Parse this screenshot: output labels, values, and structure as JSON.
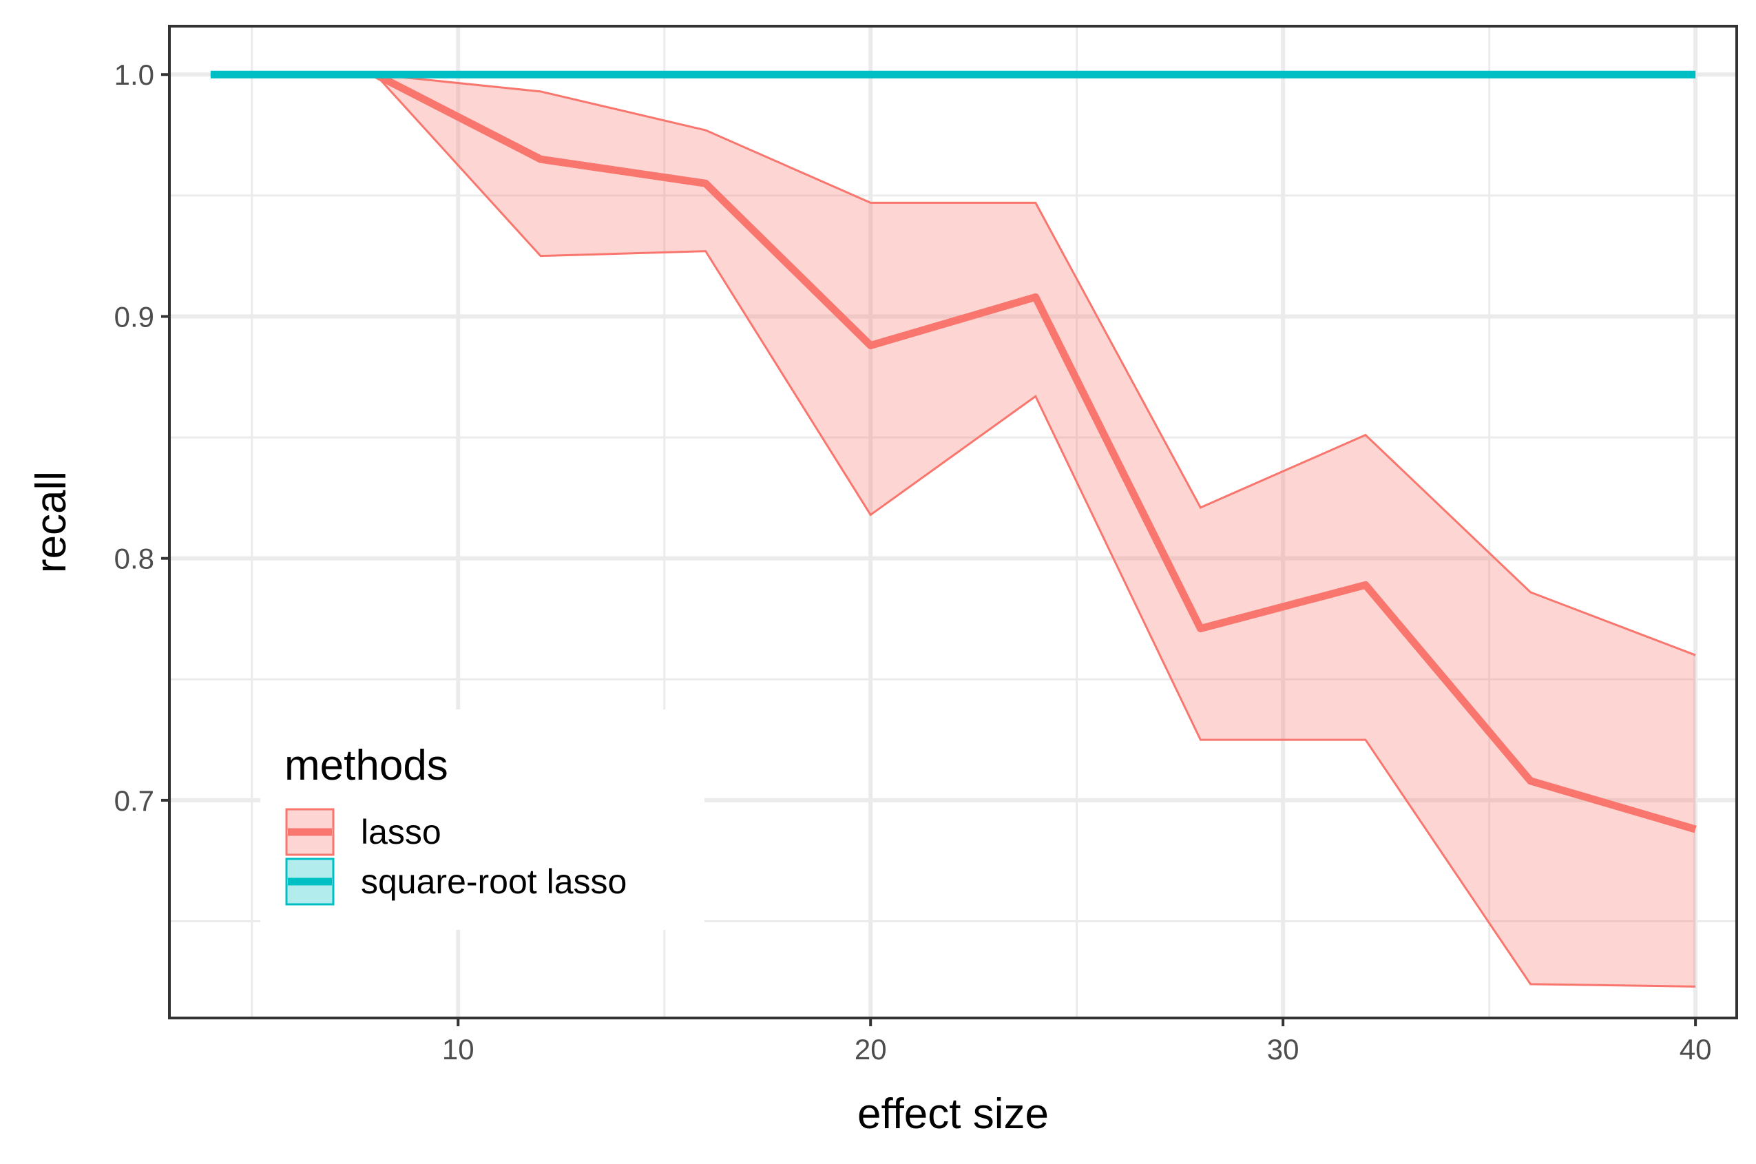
{
  "chart_data": {
    "type": "line",
    "xlabel": "effect size",
    "ylabel": "recall",
    "xlim": [
      3,
      41
    ],
    "ylim": [
      0.61,
      1.02
    ],
    "x_ticks": [
      10,
      20,
      30,
      40
    ],
    "x_tick_labels": [
      "10",
      "20",
      "30",
      "40"
    ],
    "y_ticks": [
      0.7,
      0.8,
      0.9,
      1.0
    ],
    "y_tick_labels": [
      "0.7",
      "0.8",
      "0.9",
      "1.0"
    ],
    "x_minor_ticks": [
      5,
      15,
      25,
      35
    ],
    "y_minor_ticks": [
      0.65,
      0.75,
      0.85,
      0.95
    ],
    "grid": true,
    "legend": {
      "title": "methods",
      "position": "bottom-left"
    },
    "series": [
      {
        "name": "lasso",
        "color": "#F8766D",
        "x": [
          8,
          12,
          16,
          20,
          24,
          28,
          32,
          36,
          40
        ],
        "values": [
          1.0,
          0.965,
          0.955,
          0.888,
          0.908,
          0.771,
          0.789,
          0.708,
          0.688
        ],
        "lower": [
          1.0,
          0.925,
          0.927,
          0.818,
          0.867,
          0.725,
          0.725,
          0.624,
          0.623
        ],
        "upper": [
          1.0,
          0.993,
          0.977,
          0.947,
          0.947,
          0.821,
          0.851,
          0.786,
          0.76
        ]
      },
      {
        "name": "square-root lasso",
        "color": "#00BFC4",
        "x": [
          4,
          8,
          12,
          16,
          20,
          24,
          28,
          32,
          36,
          40
        ],
        "values": [
          1.0,
          1.0,
          1.0,
          1.0,
          1.0,
          1.0,
          1.0,
          1.0,
          1.0,
          1.0
        ],
        "lower": [
          1.0,
          1.0,
          1.0,
          1.0,
          1.0,
          1.0,
          1.0,
          1.0,
          1.0,
          1.0
        ],
        "upper": [
          1.0,
          1.0,
          1.0,
          1.0,
          1.0,
          1.0,
          1.0,
          1.0,
          1.0,
          1.0
        ]
      }
    ]
  }
}
